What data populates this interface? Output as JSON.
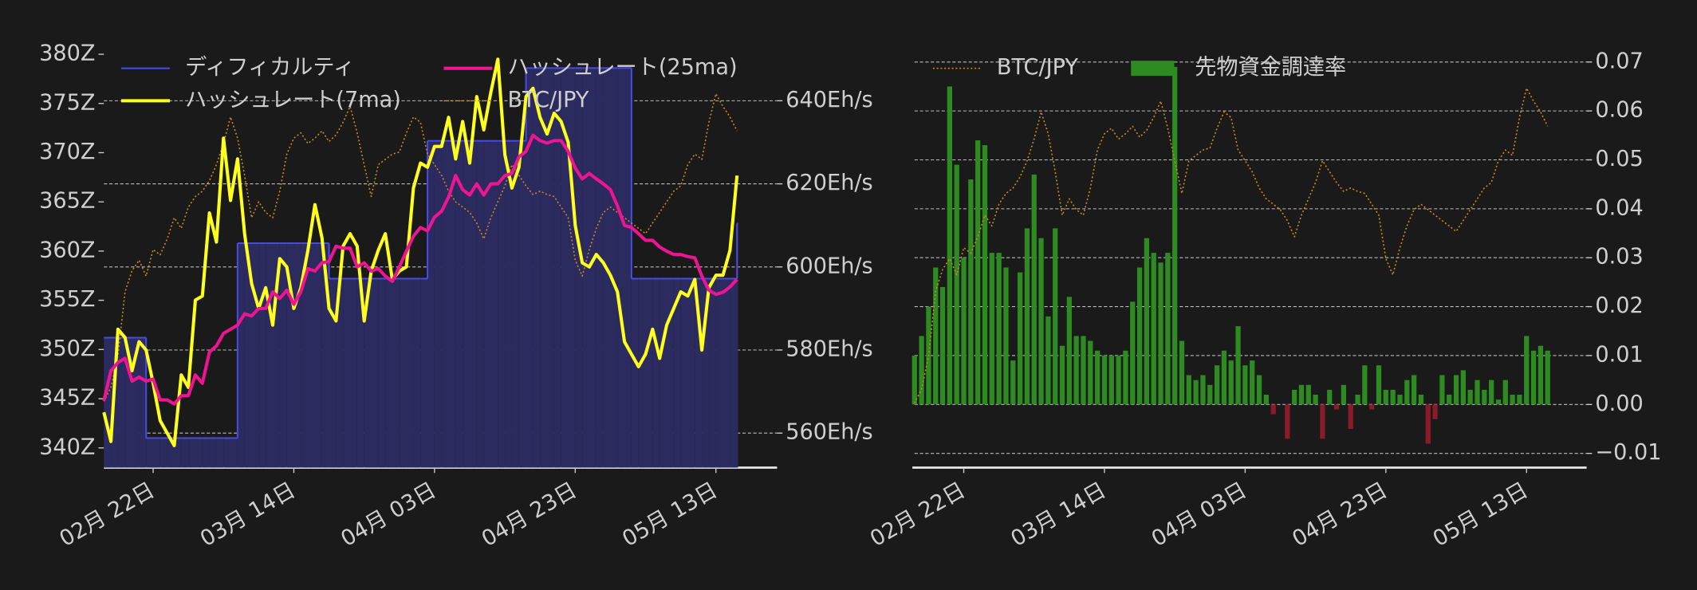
{
  "chart_data": [
    {
      "type": "line",
      "categories": [
        null,
        null,
        null,
        null,
        null,
        null,
        null,
        "02月 22日",
        null,
        null,
        null,
        null,
        null,
        null,
        null,
        null,
        null,
        null,
        null,
        null,
        null,
        null,
        null,
        null,
        null,
        null,
        null,
        "03月 14日",
        null,
        null,
        null,
        null,
        null,
        null,
        null,
        null,
        null,
        null,
        null,
        null,
        null,
        null,
        null,
        null,
        null,
        null,
        null,
        "04月 03日",
        null,
        null,
        null,
        null,
        null,
        null,
        null,
        null,
        null,
        null,
        null,
        null,
        null,
        null,
        null,
        null,
        null,
        null,
        null,
        "04月 23日",
        null,
        null,
        null,
        null,
        null,
        null,
        null,
        null,
        null,
        null,
        null,
        null,
        null,
        null,
        null,
        null,
        null,
        null,
        null,
        "05月 13日",
        null,
        null,
        null
      ],
      "ylim": [
        338.0,
        381.1
      ],
      "yticks": [
        {
          "value": 340,
          "label": "340Z"
        },
        {
          "value": 345,
          "label": "345Z"
        },
        {
          "value": 350,
          "label": "350Z"
        },
        {
          "value": 355,
          "label": "355Z"
        },
        {
          "value": 360,
          "label": "360Z"
        },
        {
          "value": 365,
          "label": "365Z"
        },
        {
          "value": 370,
          "label": "370Z"
        },
        {
          "value": 375,
          "label": "375Z"
        },
        {
          "value": 380,
          "label": "380Z"
        }
      ],
      "y_side": "left",
      "y2lim": [
        551.7,
        653.8
      ],
      "y2ticks": [
        {
          "value": 560,
          "label": "560Eh/s"
        },
        {
          "value": 580,
          "label": "580Eh/s"
        },
        {
          "value": 600,
          "label": "600Eh/s"
        },
        {
          "value": 620,
          "label": "620Eh/s"
        },
        {
          "value": 640,
          "label": "640Eh/s"
        }
      ],
      "y2_side": "right",
      "y3lim": [
        1000,
        1640
      ],
      "grid": "y2",
      "legend": {
        "loc": "upper left",
        "ncol": 2
      },
      "series": [
        {
          "name": "ディフィカルティ",
          "type": "step_area",
          "color": "#4a4ae0",
          "fill": "#2b2b60",
          "axis": "y",
          "values": [
            351.2,
            351.2,
            351.2,
            351.2,
            351.2,
            351.2,
            341,
            341,
            341,
            341,
            341,
            341,
            341,
            341,
            341,
            341,
            341,
            341,
            341,
            360.8,
            360.8,
            360.8,
            360.8,
            360.8,
            360.8,
            360.8,
            360.8,
            360.8,
            360.8,
            360.8,
            360.8,
            360.8,
            357.2,
            357.2,
            357.2,
            357.2,
            357.2,
            357.2,
            357.2,
            357.2,
            357.2,
            357.2,
            357.2,
            357.2,
            357.2,
            357.2,
            371.2,
            371.2,
            371.2,
            371.2,
            371.2,
            371.2,
            371.2,
            371.2,
            371.2,
            371.2,
            371.2,
            371.2,
            371.2,
            371.2,
            378.6,
            378.6,
            378.6,
            378.6,
            378.6,
            378.6,
            378.6,
            378.6,
            378.6,
            378.6,
            378.6,
            378.6,
            378.6,
            378.6,
            378.6,
            357.2,
            357.2,
            357.2,
            357.2,
            357.2,
            357.2,
            357.2,
            357.2,
            357.2,
            357.2,
            357.2,
            357.2,
            357.2,
            357.2,
            357.2,
            362.8
          ]
        },
        {
          "name": "ハッシュレート(7ma)",
          "type": "line",
          "color": "#ffff1e",
          "axis": "y2",
          "values": [
            565,
            558,
            585,
            583,
            575,
            582,
            580,
            572,
            563,
            560,
            557,
            574,
            571,
            592,
            593,
            613,
            606,
            631,
            616,
            626,
            608,
            596,
            590,
            595,
            586,
            602,
            600,
            590,
            595,
            604,
            615,
            607,
            590,
            587,
            605,
            608,
            605,
            587,
            599,
            604,
            608,
            597,
            599,
            600,
            619,
            625,
            624,
            629,
            629,
            636,
            626,
            635,
            625,
            641,
            633,
            642,
            650,
            627,
            619,
            624,
            641,
            643,
            636,
            632,
            637,
            635,
            630,
            610,
            601,
            600,
            603,
            601,
            598,
            594,
            582,
            579,
            576,
            579,
            585,
            578,
            586,
            590,
            594,
            593,
            597,
            580,
            595,
            598,
            598,
            604,
            622
          ]
        },
        {
          "name": "ハッシュレート(25ma)",
          "type": "line",
          "color": "#ee1493",
          "axis": "y2",
          "values": [
            567.8,
            575,
            577,
            578,
            572.5,
            573.5,
            572.5,
            573,
            568,
            568,
            567,
            569,
            569,
            574,
            572,
            579.5,
            581,
            584,
            585,
            586,
            588.7,
            588.2,
            590,
            590,
            594,
            592.4,
            594.4,
            591,
            594,
            599.6,
            599,
            601,
            601.3,
            605,
            604.5,
            604.5,
            600,
            601,
            599,
            599.6,
            597.8,
            596.5,
            600,
            603.8,
            607.4,
            609.5,
            608.7,
            612,
            613.4,
            616.8,
            622,
            618.6,
            617.3,
            620,
            617.3,
            620,
            620,
            622,
            622.5,
            626.5,
            627.8,
            631.7,
            630.4,
            629.8,
            630.4,
            630.4,
            627.8,
            623.8,
            621.2,
            622.5,
            621.2,
            620,
            618.6,
            614.7,
            610,
            609.5,
            608,
            606.4,
            606.4,
            604.8,
            603.8,
            603,
            603,
            602.5,
            602.2,
            597.8,
            594.4,
            593.4,
            593.9,
            595.2,
            597
          ]
        },
        {
          "name": "BTC/JPY",
          "type": "line",
          "style": "dotted",
          "color": "#c8861e",
          "axis": "y3",
          "values": [
            1100,
            1121,
            1169,
            1265,
            1297,
            1313,
            1289,
            1329,
            1321,
            1345,
            1377,
            1361,
            1393,
            1409,
            1417,
            1433,
            1457,
            1489,
            1529,
            1497,
            1441,
            1377,
            1401,
            1385,
            1377,
            1417,
            1473,
            1497,
            1505,
            1489,
            1497,
            1508,
            1492,
            1502,
            1521,
            1545,
            1505,
            1457,
            1409,
            1457,
            1465,
            1473,
            1476,
            1505,
            1529,
            1521,
            1473,
            1457,
            1441,
            1417,
            1401,
            1393,
            1385,
            1369,
            1345,
            1377,
            1401,
            1425,
            1457,
            1441,
            1425,
            1412,
            1417,
            1412,
            1409,
            1393,
            1377,
            1313,
            1289,
            1329,
            1361,
            1385,
            1393,
            1385,
            1377,
            1369,
            1361,
            1353,
            1369,
            1385,
            1401,
            1417,
            1425,
            1457,
            1473,
            1465,
            1521,
            1564,
            1545,
            1529,
            1508
          ]
        }
      ]
    },
    {
      "type": "bar",
      "categories": [
        null,
        null,
        null,
        null,
        null,
        null,
        null,
        "02月 22日",
        null,
        null,
        null,
        null,
        null,
        null,
        null,
        null,
        null,
        null,
        null,
        null,
        null,
        null,
        null,
        null,
        null,
        null,
        null,
        "03月 14日",
        null,
        null,
        null,
        null,
        null,
        null,
        null,
        null,
        null,
        null,
        null,
        null,
        null,
        null,
        null,
        null,
        null,
        null,
        null,
        "04月 03日",
        null,
        null,
        null,
        null,
        null,
        null,
        null,
        null,
        null,
        null,
        null,
        null,
        null,
        null,
        null,
        null,
        null,
        null,
        null,
        "04月 23日",
        null,
        null,
        null,
        null,
        null,
        null,
        null,
        null,
        null,
        null,
        null,
        null,
        null,
        null,
        null,
        null,
        null,
        null,
        null,
        "05月 13日",
        null,
        null,
        null
      ],
      "ylim": [
        -0.0129,
        0.0738
      ],
      "yticks": [
        {
          "value": -0.01,
          "label": "−0.01"
        },
        {
          "value": 0,
          "label": "0.00"
        },
        0.01,
        0.02,
        0.03,
        0.04,
        0.05,
        0.06,
        0.07
      ],
      "y_side": "right",
      "y3lim": [
        1005,
        1630
      ],
      "grid": "y",
      "legend": {
        "loc": "upper left",
        "ncol": 2
      },
      "series": [
        {
          "name": "BTC/JPY",
          "type": "line",
          "style": "dotted",
          "color": "#c8861e",
          "axis": "y3",
          "values": [
            1100,
            1121,
            1169,
            1265,
            1297,
            1313,
            1289,
            1329,
            1321,
            1345,
            1377,
            1361,
            1393,
            1409,
            1417,
            1433,
            1457,
            1489,
            1529,
            1497,
            1441,
            1377,
            1401,
            1385,
            1377,
            1417,
            1473,
            1497,
            1505,
            1489,
            1497,
            1508,
            1492,
            1502,
            1521,
            1545,
            1505,
            1457,
            1409,
            1457,
            1465,
            1473,
            1476,
            1505,
            1529,
            1521,
            1473,
            1457,
            1441,
            1417,
            1401,
            1393,
            1385,
            1369,
            1345,
            1377,
            1401,
            1425,
            1457,
            1441,
            1425,
            1412,
            1417,
            1412,
            1409,
            1393,
            1377,
            1313,
            1289,
            1329,
            1361,
            1385,
            1393,
            1385,
            1377,
            1369,
            1361,
            1353,
            1369,
            1385,
            1401,
            1417,
            1425,
            1457,
            1473,
            1465,
            1521,
            1564,
            1545,
            1529,
            1508
          ]
        },
        {
          "name": "先物資金調達率",
          "type": "bar",
          "color": "#2e8b22",
          "negative_color": "#8b1a2a",
          "axis": "y",
          "values": [
            0.01,
            0.014,
            0.02,
            0.028,
            0.024,
            0.065,
            0.049,
            0.03,
            0.046,
            0.054,
            0.053,
            0.031,
            0.031,
            0.028,
            0.009,
            0.027,
            0.036,
            0.047,
            0.034,
            0.018,
            0.036,
            0.012,
            0.022,
            0.014,
            0.014,
            0.013,
            0.011,
            0.01,
            0.01,
            0.01,
            0.011,
            0.021,
            0.028,
            0.034,
            0.031,
            0.029,
            0.031,
            0.069,
            0.013,
            0.006,
            0.005,
            0.006,
            0.004,
            0.008,
            0.011,
            0.009,
            0.016,
            0.008,
            0.009,
            0.006,
            0.002,
            -0.002,
            0,
            -0.007,
            0.003,
            0.004,
            0.004,
            0.002,
            -0.007,
            0.003,
            -0.001,
            0.004,
            -0.005,
            0.002,
            0.008,
            -0.001,
            0.008,
            0.003,
            0.003,
            0.002,
            0.005,
            0.006,
            0.002,
            -0.008,
            -0.003,
            0.006,
            0.002,
            0.006,
            0.007,
            0.003,
            0.005,
            0.003,
            0.005,
            0.001,
            0.005,
            0.002,
            0.002,
            0.014,
            0.011,
            0.012,
            0.011
          ]
        }
      ]
    }
  ]
}
